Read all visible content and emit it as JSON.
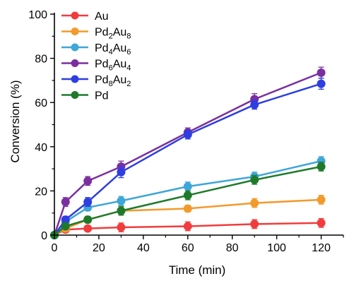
{
  "chart_data": {
    "type": "line",
    "xlabel": "Time (min)",
    "ylabel": "Conversion (%)",
    "xlim": [
      0,
      130
    ],
    "ylim": [
      0,
      100
    ],
    "xticks": [
      0,
      20,
      40,
      60,
      80,
      100,
      120
    ],
    "yticks": [
      0,
      20,
      40,
      60,
      80,
      100
    ],
    "grid": false,
    "legend_position": "top-left",
    "x": [
      0,
      5,
      15,
      30,
      60,
      90,
      120
    ],
    "series": [
      {
        "name": "Au",
        "base": "Au",
        "sub1": "",
        "mid": "",
        "sub2": "",
        "color": "#f03c3c",
        "values": [
          0,
          2.5,
          3,
          3.5,
          4,
          5,
          5.5
        ],
        "errors": [
          0,
          1,
          1,
          2,
          2,
          2,
          2
        ]
      },
      {
        "name": "Pd2Au8",
        "base": "Pd",
        "sub1": "2",
        "mid": "Au",
        "sub2": "8",
        "color": "#f39a2c",
        "values": [
          0,
          3,
          7,
          11,
          12,
          14.5,
          16
        ],
        "errors": [
          0,
          1,
          1,
          1.5,
          1.5,
          2,
          2
        ]
      },
      {
        "name": "Pd4Au6",
        "base": "Pd",
        "sub1": "4",
        "mid": "Au",
        "sub2": "6",
        "color": "#3ea6d8",
        "values": [
          0,
          6,
          12.5,
          15.5,
          22,
          26.5,
          33.5
        ],
        "errors": [
          0,
          1,
          1.5,
          2,
          2,
          2,
          2
        ]
      },
      {
        "name": "Pd6Au4",
        "base": "Pd",
        "sub1": "6",
        "mid": "Au",
        "sub2": "4",
        "color": "#7a2fa0",
        "values": [
          0,
          15,
          24.5,
          31,
          46.5,
          61.5,
          73.5
        ],
        "errors": [
          0,
          2,
          2,
          2.5,
          2,
          2.5,
          2.5
        ]
      },
      {
        "name": "Pd8Au2",
        "base": "Pd",
        "sub1": "8",
        "mid": "Au",
        "sub2": "2",
        "color": "#2e3ee0",
        "values": [
          0,
          7,
          15,
          28.5,
          45.5,
          59,
          68.5
        ],
        "errors": [
          0,
          1.5,
          2,
          2.5,
          2,
          2,
          2.5
        ]
      },
      {
        "name": "Pd",
        "base": "Pd",
        "sub1": "",
        "mid": "",
        "sub2": "",
        "color": "#1e7a2a",
        "values": [
          0,
          4,
          7,
          11,
          18,
          25,
          31
        ],
        "errors": [
          0,
          1,
          1.5,
          2,
          2,
          2,
          2
        ]
      }
    ]
  }
}
